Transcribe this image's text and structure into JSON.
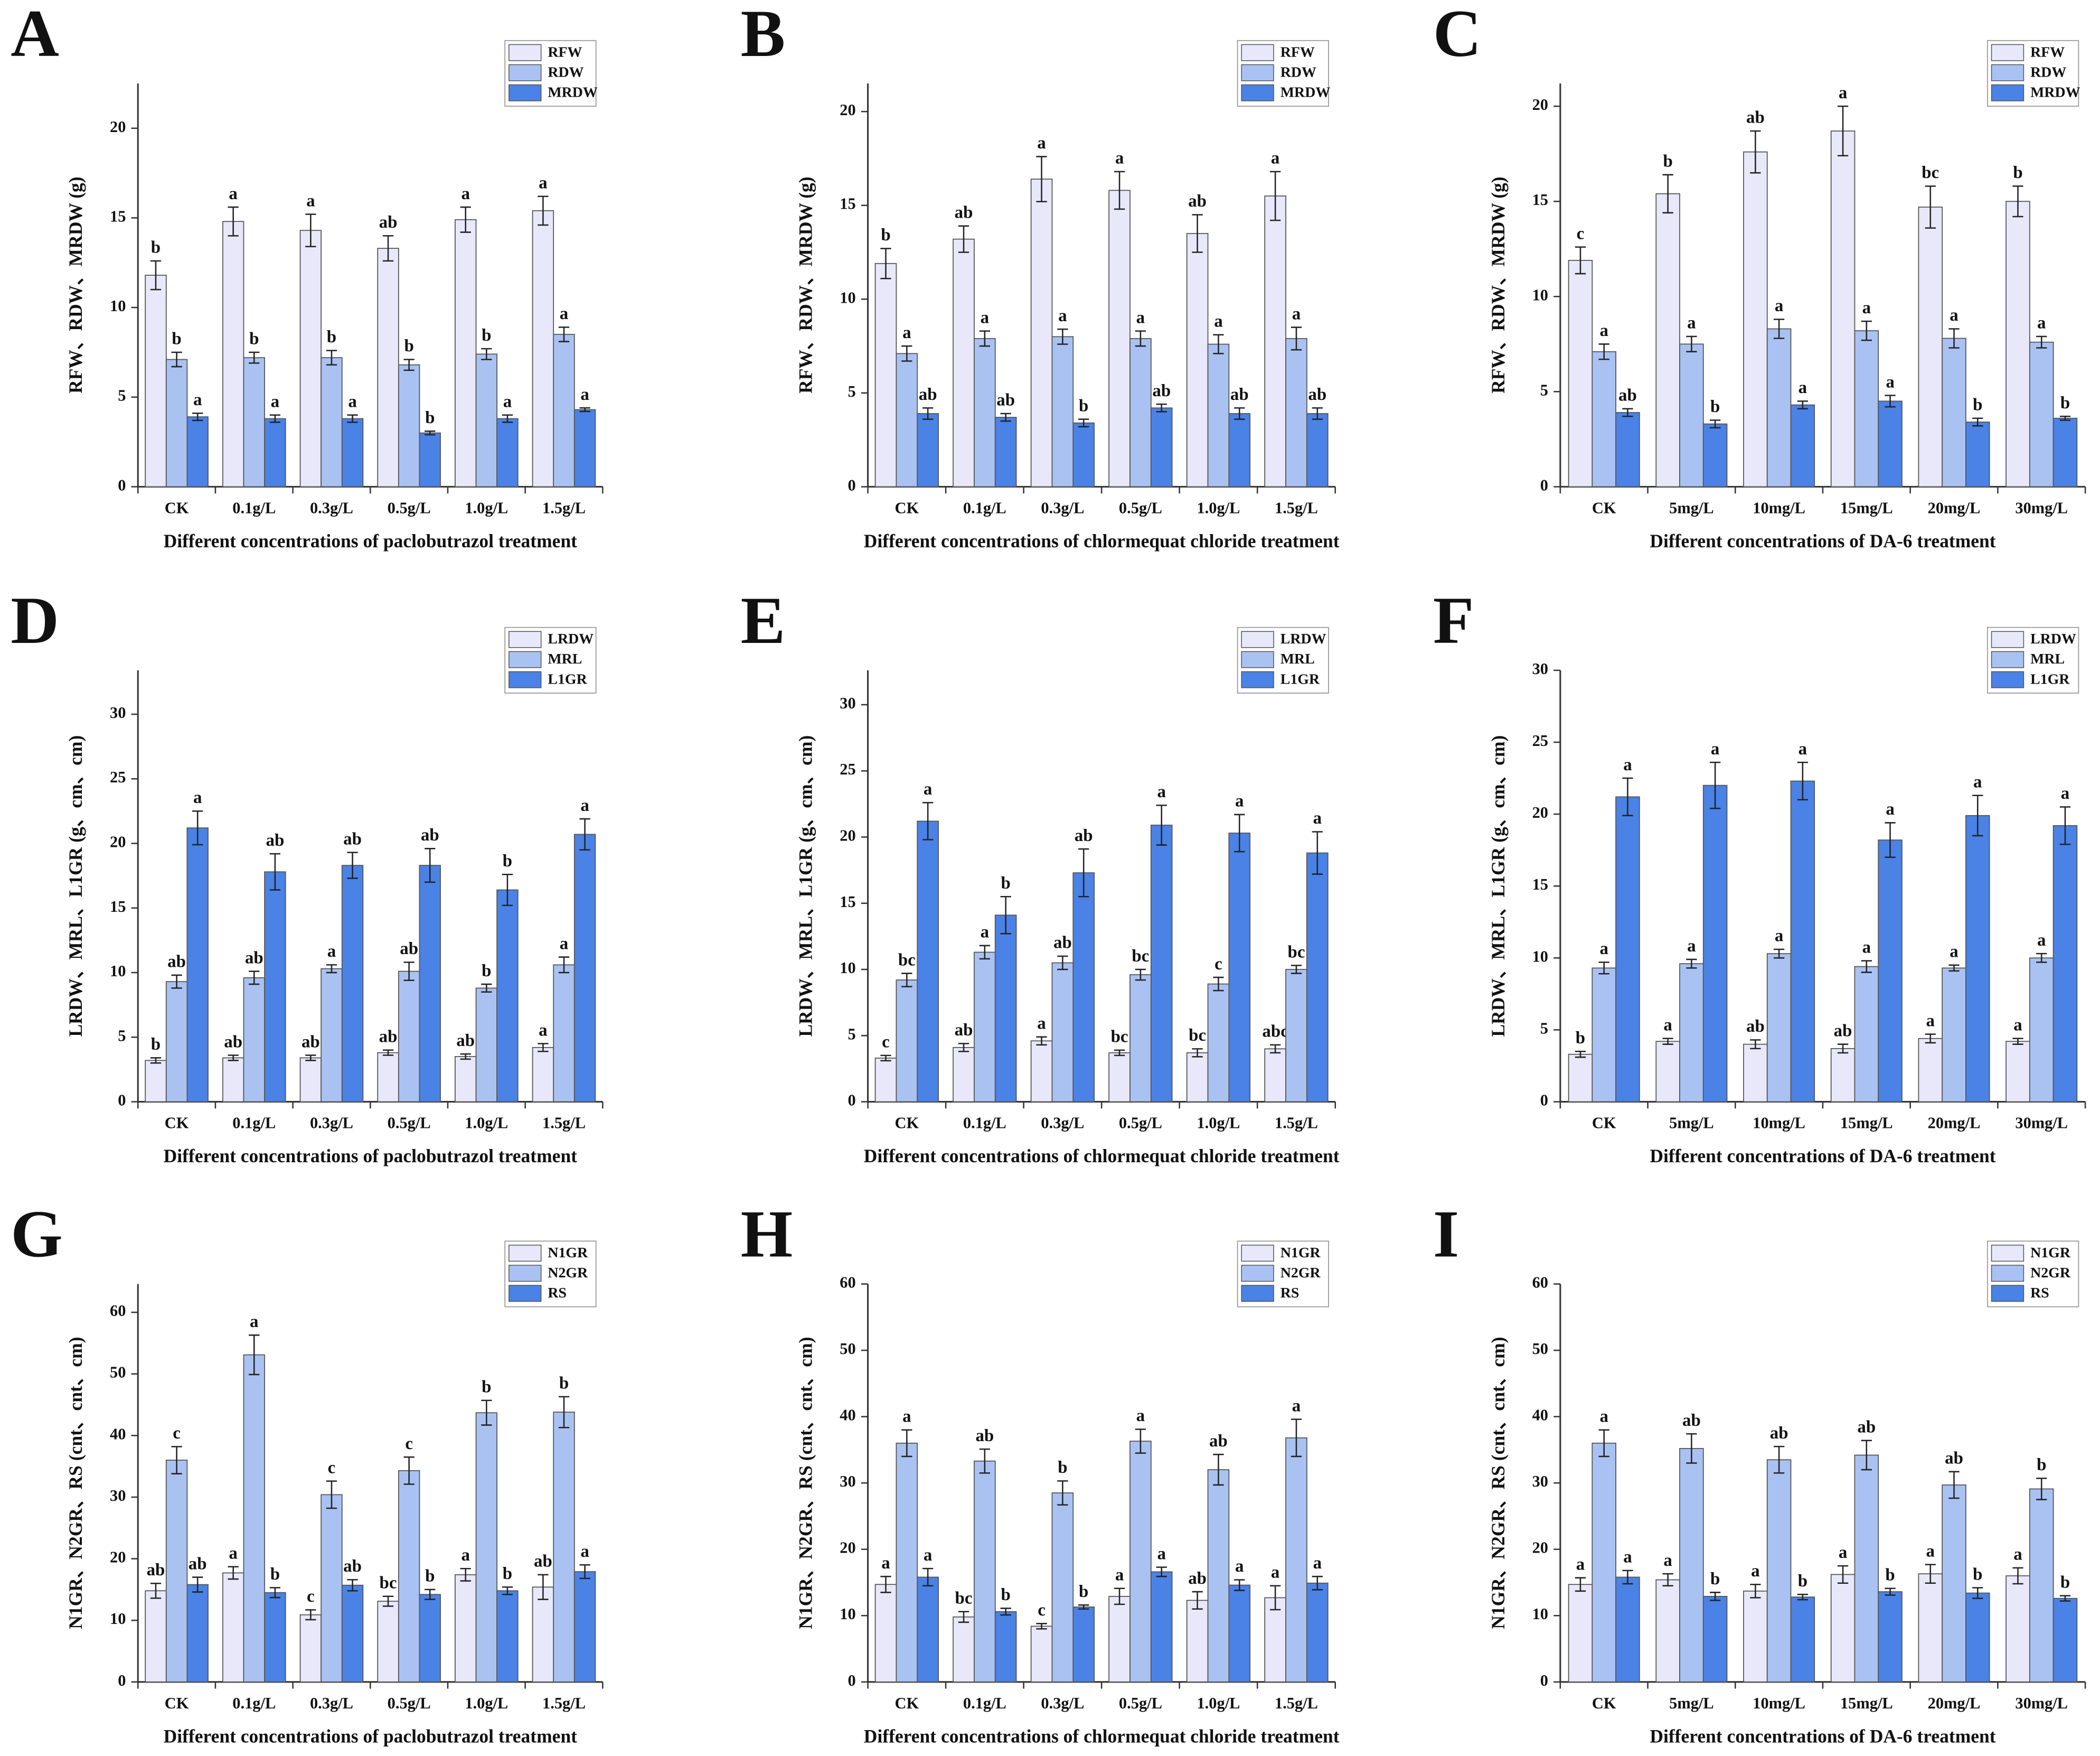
{
  "chart_data": [
    {
      "panel": "A",
      "type": "bar",
      "ylabel": "RFW、RDW、MRDW (g)",
      "xlabel": "Different concentrations of paclobutrazol treatment",
      "categories": [
        "CK",
        "0.1g/L",
        "0.3g/L",
        "0.5g/L",
        "1.0g/L",
        "1.5g/L"
      ],
      "ylim": [
        0,
        22.5
      ],
      "yticks": [
        0,
        5,
        10,
        15,
        20
      ],
      "series": [
        {
          "name": "RFW",
          "color": "#e8e8fa",
          "values": [
            11.8,
            14.8,
            14.3,
            13.3,
            14.9,
            15.4
          ],
          "errors": [
            0.8,
            0.8,
            0.9,
            0.7,
            0.7,
            0.8
          ],
          "letters": [
            "b",
            "a",
            "a",
            "ab",
            "a",
            "a"
          ]
        },
        {
          "name": "RDW",
          "color": "#a9c2f2",
          "values": [
            7.1,
            7.2,
            7.2,
            6.8,
            7.4,
            8.5
          ],
          "errors": [
            0.4,
            0.3,
            0.4,
            0.3,
            0.3,
            0.4
          ],
          "letters": [
            "b",
            "b",
            "b",
            "b",
            "b",
            "a"
          ]
        },
        {
          "name": "MRDW",
          "color": "#4a82e6",
          "values": [
            3.9,
            3.8,
            3.8,
            3.0,
            3.8,
            4.3
          ],
          "errors": [
            0.2,
            0.2,
            0.2,
            0.1,
            0.2,
            0.1
          ],
          "letters": [
            "a",
            "a",
            "a",
            "b",
            "a",
            "a"
          ]
        }
      ]
    },
    {
      "panel": "B",
      "type": "bar",
      "ylabel": "RFW、RDW、MRDW (g)",
      "xlabel": "Different concentrations of chlormequat chloride treatment",
      "categories": [
        "CK",
        "0.1g/L",
        "0.3g/L",
        "0.5g/L",
        "1.0g/L",
        "1.5g/L"
      ],
      "ylim": [
        0,
        21.5
      ],
      "yticks": [
        0,
        5,
        10,
        15,
        20
      ],
      "series": [
        {
          "name": "RFW",
          "color": "#e8e8fa",
          "values": [
            11.9,
            13.2,
            16.4,
            15.8,
            13.5,
            15.5
          ],
          "errors": [
            0.8,
            0.7,
            1.2,
            1.0,
            1.0,
            1.3
          ],
          "letters": [
            "b",
            "ab",
            "a",
            "a",
            "ab",
            "a"
          ]
        },
        {
          "name": "RDW",
          "color": "#a9c2f2",
          "values": [
            7.1,
            7.9,
            8.0,
            7.9,
            7.6,
            7.9
          ],
          "errors": [
            0.4,
            0.4,
            0.4,
            0.4,
            0.5,
            0.6
          ],
          "letters": [
            "a",
            "a",
            "a",
            "a",
            "a",
            "a"
          ]
        },
        {
          "name": "MRDW",
          "color": "#4a82e6",
          "values": [
            3.9,
            3.7,
            3.4,
            4.2,
            3.9,
            3.9
          ],
          "errors": [
            0.3,
            0.2,
            0.2,
            0.2,
            0.3,
            0.3
          ],
          "letters": [
            "ab",
            "ab",
            "b",
            "ab",
            "ab",
            "ab"
          ]
        }
      ]
    },
    {
      "panel": "C",
      "type": "bar",
      "ylabel": "RFW、RDW、MRDW (g)",
      "xlabel": "Different concentrations of DA-6 treatment",
      "categories": [
        "CK",
        "5mg/L",
        "10mg/L",
        "15mg/L",
        "20mg/L",
        "30mg/L"
      ],
      "ylim": [
        0,
        21.2
      ],
      "yticks": [
        0,
        5,
        10,
        15,
        20
      ],
      "series": [
        {
          "name": "RFW",
          "color": "#e8e8fa",
          "values": [
            11.9,
            15.4,
            17.6,
            18.7,
            14.7,
            15.0
          ],
          "errors": [
            0.7,
            1.0,
            1.1,
            1.3,
            1.1,
            0.8
          ],
          "letters": [
            "c",
            "b",
            "ab",
            "a",
            "bc",
            "b"
          ]
        },
        {
          "name": "RDW",
          "color": "#a9c2f2",
          "values": [
            7.1,
            7.5,
            8.3,
            8.2,
            7.8,
            7.6
          ],
          "errors": [
            0.4,
            0.4,
            0.5,
            0.5,
            0.5,
            0.3
          ],
          "letters": [
            "a",
            "a",
            "a",
            "a",
            "a",
            "a"
          ]
        },
        {
          "name": "MRDW",
          "color": "#4a82e6",
          "values": [
            3.9,
            3.3,
            4.3,
            4.5,
            3.4,
            3.6
          ],
          "errors": [
            0.2,
            0.2,
            0.2,
            0.3,
            0.2,
            0.1
          ],
          "letters": [
            "ab",
            "b",
            "a",
            "a",
            "b",
            "b"
          ]
        }
      ]
    },
    {
      "panel": "D",
      "type": "bar",
      "ylabel": "LRDW、MRL、L1GR (g、cm、cm)",
      "xlabel": "Different concentrations of paclobutrazol treatment",
      "categories": [
        "CK",
        "0.1g/L",
        "0.3g/L",
        "0.5g/L",
        "1.0g/L",
        "1.5g/L"
      ],
      "ylim": [
        0,
        33.4
      ],
      "yticks": [
        0,
        5,
        10,
        15,
        20,
        25,
        30
      ],
      "series": [
        {
          "name": "LRDW",
          "color": "#e8e8fa",
          "values": [
            3.2,
            3.4,
            3.4,
            3.8,
            3.5,
            4.2
          ],
          "errors": [
            0.2,
            0.2,
            0.2,
            0.2,
            0.2,
            0.3
          ],
          "letters": [
            "b",
            "ab",
            "ab",
            "ab",
            "ab",
            "a"
          ]
        },
        {
          "name": "MRL",
          "color": "#a9c2f2",
          "values": [
            9.3,
            9.6,
            10.3,
            10.1,
            8.8,
            10.6
          ],
          "errors": [
            0.5,
            0.5,
            0.3,
            0.7,
            0.3,
            0.6
          ],
          "letters": [
            "ab",
            "ab",
            "a",
            "ab",
            "b",
            "a"
          ]
        },
        {
          "name": "L1GR",
          "color": "#4a82e6",
          "values": [
            21.2,
            17.8,
            18.3,
            18.3,
            16.4,
            20.7
          ],
          "errors": [
            1.3,
            1.4,
            1.0,
            1.3,
            1.2,
            1.2
          ],
          "letters": [
            "a",
            "ab",
            "ab",
            "ab",
            "b",
            "a"
          ]
        }
      ]
    },
    {
      "panel": "E",
      "type": "bar",
      "ylabel": "LRDW、MRL、L1GR (g、cm、cm)",
      "xlabel": "Different concentrations of chlormequat chloride treatment",
      "categories": [
        "CK",
        "0.1g/L",
        "0.3g/L",
        "0.5g/L",
        "1.0g/L",
        "1.5g/L"
      ],
      "ylim": [
        0,
        32.6
      ],
      "yticks": [
        0,
        5,
        10,
        15,
        20,
        25,
        30
      ],
      "series": [
        {
          "name": "LRDW",
          "color": "#e8e8fa",
          "values": [
            3.3,
            4.1,
            4.6,
            3.7,
            3.7,
            4.0
          ],
          "errors": [
            0.2,
            0.3,
            0.3,
            0.2,
            0.3,
            0.3
          ],
          "letters": [
            "c",
            "ab",
            "a",
            "bc",
            "bc",
            "abc"
          ]
        },
        {
          "name": "MRL",
          "color": "#a9c2f2",
          "values": [
            9.2,
            11.3,
            10.5,
            9.6,
            8.9,
            10.0
          ],
          "errors": [
            0.5,
            0.5,
            0.5,
            0.4,
            0.5,
            0.3
          ],
          "letters": [
            "bc",
            "a",
            "ab",
            "bc",
            "c",
            "bc"
          ]
        },
        {
          "name": "L1GR",
          "color": "#4a82e6",
          "values": [
            21.2,
            14.1,
            17.3,
            20.9,
            20.3,
            18.8
          ],
          "errors": [
            1.4,
            1.4,
            1.8,
            1.5,
            1.4,
            1.6
          ],
          "letters": [
            "a",
            "b",
            "ab",
            "a",
            "a",
            "a"
          ]
        }
      ]
    },
    {
      "panel": "F",
      "type": "bar",
      "ylabel": "LRDW、MRL、L1GR (g、cm、cm)",
      "xlabel": "Different concentrations of DA-6 treatment",
      "categories": [
        "CK",
        "5mg/L",
        "10mg/L",
        "15mg/L",
        "20mg/L",
        "30mg/L"
      ],
      "ylim": [
        0,
        30
      ],
      "yticks": [
        0,
        5,
        10,
        15,
        20,
        25,
        30
      ],
      "series": [
        {
          "name": "LRDW",
          "color": "#e8e8fa",
          "values": [
            3.3,
            4.2,
            4.0,
            3.7,
            4.4,
            4.2
          ],
          "errors": [
            0.2,
            0.2,
            0.3,
            0.3,
            0.3,
            0.2
          ],
          "letters": [
            "b",
            "a",
            "ab",
            "ab",
            "a",
            "a"
          ]
        },
        {
          "name": "MRL",
          "color": "#a9c2f2",
          "values": [
            9.3,
            9.6,
            10.3,
            9.4,
            9.3,
            10.0
          ],
          "errors": [
            0.4,
            0.3,
            0.3,
            0.4,
            0.2,
            0.3
          ],
          "letters": [
            "a",
            "a",
            "a",
            "a",
            "a",
            "a"
          ]
        },
        {
          "name": "L1GR",
          "color": "#4a82e6",
          "values": [
            21.2,
            22.0,
            22.3,
            18.2,
            19.9,
            19.2
          ],
          "errors": [
            1.3,
            1.6,
            1.3,
            1.2,
            1.4,
            1.3
          ],
          "letters": [
            "a",
            "a",
            "a",
            "a",
            "a",
            "a"
          ]
        }
      ]
    },
    {
      "panel": "G",
      "type": "bar",
      "ylabel": "N1GR、N2GR、RS (cnt、cnt、cm)",
      "xlabel": "Different concentrations of paclobutrazol treatment",
      "categories": [
        "CK",
        "0.1g/L",
        "0.3g/L",
        "0.5g/L",
        "1.0g/L",
        "1.5g/L"
      ],
      "ylim": [
        0,
        64.6
      ],
      "yticks": [
        0,
        10,
        20,
        30,
        40,
        50,
        60
      ],
      "series": [
        {
          "name": "N1GR",
          "color": "#e8e8fa",
          "values": [
            14.8,
            17.7,
            10.9,
            13.1,
            17.4,
            15.4
          ],
          "errors": [
            1.2,
            1.0,
            0.8,
            0.8,
            1.0,
            2.0
          ],
          "letters": [
            "ab",
            "a",
            "c",
            "bc",
            "a",
            "ab"
          ]
        },
        {
          "name": "N2GR",
          "color": "#a9c2f2",
          "values": [
            36.0,
            53.1,
            30.4,
            34.3,
            43.7,
            43.8
          ],
          "errors": [
            2.2,
            3.2,
            2.2,
            2.2,
            2.0,
            2.5
          ],
          "letters": [
            "c",
            "a",
            "c",
            "c",
            "b",
            "b"
          ]
        },
        {
          "name": "RS",
          "color": "#4a82e6",
          "values": [
            15.8,
            14.5,
            15.7,
            14.2,
            14.8,
            17.9
          ],
          "errors": [
            1.2,
            0.8,
            0.9,
            0.8,
            0.6,
            1.1
          ],
          "letters": [
            "ab",
            "b",
            "ab",
            "b",
            "b",
            "a"
          ]
        }
      ]
    },
    {
      "panel": "H",
      "type": "bar",
      "ylabel": "N1GR、N2GR、RS (cnt、cnt、cm)",
      "xlabel": "Different concentrations of chlormequat chloride treatment",
      "categories": [
        "CK",
        "0.1g/L",
        "0.3g/L",
        "0.5g/L",
        "1.0g/L",
        "1.5g/L"
      ],
      "ylim": [
        0,
        60
      ],
      "yticks": [
        0,
        10,
        20,
        30,
        40,
        50,
        60
      ],
      "series": [
        {
          "name": "N1GR",
          "color": "#e8e8fa",
          "values": [
            14.7,
            9.8,
            8.4,
            12.9,
            12.3,
            12.7
          ],
          "errors": [
            1.2,
            0.8,
            0.4,
            1.2,
            1.3,
            1.8
          ],
          "letters": [
            "a",
            "bc",
            "c",
            "a",
            "ab",
            "a"
          ]
        },
        {
          "name": "N2GR",
          "color": "#a9c2f2",
          "values": [
            36.0,
            33.3,
            28.5,
            36.3,
            32.0,
            36.8
          ],
          "errors": [
            2.0,
            1.8,
            1.8,
            1.8,
            2.3,
            2.8
          ],
          "letters": [
            "a",
            "ab",
            "b",
            "a",
            "ab",
            "a"
          ]
        },
        {
          "name": "RS",
          "color": "#4a82e6",
          "values": [
            15.8,
            10.6,
            11.3,
            16.6,
            14.6,
            14.9
          ],
          "errors": [
            1.3,
            0.5,
            0.3,
            0.7,
            0.8,
            1.0
          ],
          "letters": [
            "a",
            "b",
            "b",
            "a",
            "a",
            "a"
          ]
        }
      ]
    },
    {
      "panel": "I",
      "type": "bar",
      "ylabel": "N1GR、N2GR、RS (cnt、cnt、cm)",
      "xlabel": "Different concentrations of DA-6 treatment",
      "categories": [
        "CK",
        "5mg/L",
        "10mg/L",
        "15mg/L",
        "20mg/L",
        "30mg/L"
      ],
      "ylim": [
        0,
        60
      ],
      "yticks": [
        0,
        10,
        20,
        30,
        40,
        50,
        60
      ],
      "series": [
        {
          "name": "N1GR",
          "color": "#e8e8fa",
          "values": [
            14.7,
            15.4,
            13.7,
            16.2,
            16.3,
            16.0
          ],
          "errors": [
            1.0,
            0.9,
            1.0,
            1.3,
            1.4,
            1.2
          ],
          "letters": [
            "a",
            "a",
            "a",
            "a",
            "a",
            "a"
          ]
        },
        {
          "name": "N2GR",
          "color": "#a9c2f2",
          "values": [
            36.0,
            35.2,
            33.5,
            34.2,
            29.7,
            29.1
          ],
          "errors": [
            2.0,
            2.2,
            2.0,
            2.2,
            2.0,
            1.6
          ],
          "letters": [
            "a",
            "ab",
            "ab",
            "ab",
            "ab",
            "b"
          ]
        },
        {
          "name": "RS",
          "color": "#4a82e6",
          "values": [
            15.8,
            12.9,
            12.8,
            13.6,
            13.4,
            12.6
          ],
          "errors": [
            1.0,
            0.6,
            0.4,
            0.5,
            0.8,
            0.4
          ],
          "letters": [
            "a",
            "b",
            "b",
            "b",
            "b",
            "b"
          ]
        }
      ]
    }
  ]
}
